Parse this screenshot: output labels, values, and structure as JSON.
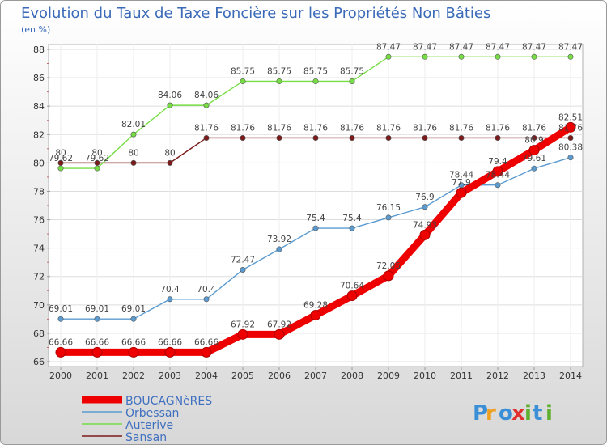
{
  "chart_data": {
    "type": "line",
    "title": "Evolution du Taux de Taxe Foncière sur les Propriétés Non Bâties",
    "subtitle": "(en %)",
    "x": [
      "2000",
      "2001",
      "2002",
      "2003",
      "2004",
      "2005",
      "2006",
      "2007",
      "2008",
      "2009",
      "2010",
      "2011",
      "2012",
      "2013",
      "2014"
    ],
    "ylim": [
      66,
      88
    ],
    "yticks": [
      66,
      68,
      70,
      72,
      74,
      76,
      78,
      80,
      82,
      84,
      86,
      88
    ],
    "grid": true,
    "legend_position": "bottom-left",
    "series": [
      {
        "name": "BOUCAGNèRES",
        "color": "#ee0000",
        "values": [
          66.66,
          66.66,
          66.66,
          66.66,
          66.66,
          67.92,
          67.92,
          69.28,
          70.64,
          72.05,
          74.93,
          77.9,
          79.4,
          80.9,
          82.51
        ],
        "labels": [
          "66.66",
          "66.66",
          "66.66",
          "66.66",
          "66.66",
          "67.92",
          "67.92",
          "69.28",
          "70.64",
          "72.05",
          "74.93",
          "77.9",
          "79.4",
          "80.9",
          "82.51"
        ]
      },
      {
        "name": "Orbessan",
        "color": "#5b9bd0",
        "values": [
          69.01,
          69.01,
          69.01,
          70.4,
          70.4,
          72.47,
          73.92,
          75.4,
          75.4,
          76.15,
          76.9,
          78.44,
          78.44,
          79.61,
          80.38
        ],
        "labels": [
          "69.01",
          "69.01",
          "69.01",
          "70.4",
          "70.4",
          "72.47",
          "73.92",
          "75.4",
          "75.4",
          "76.15",
          "76.9",
          "78.44",
          "78.44",
          "79.61",
          "80.38"
        ]
      },
      {
        "name": "Auterive",
        "color": "#77dd44",
        "values": [
          79.62,
          79.62,
          82.01,
          84.06,
          84.06,
          85.75,
          85.75,
          85.75,
          85.75,
          87.47,
          87.47,
          87.47,
          87.47,
          87.47,
          87.47
        ],
        "labels": [
          "79.62",
          "79.62",
          "82.01",
          "84.06",
          "84.06",
          "85.75",
          "85.75",
          "85.75",
          "85.75",
          "87.47",
          "87.47",
          "87.47",
          "87.47",
          "87.47",
          "87.47"
        ]
      },
      {
        "name": "Sansan",
        "color": "#7a1a1a",
        "values": [
          80,
          80,
          80,
          80,
          81.76,
          81.76,
          81.76,
          81.76,
          81.76,
          81.76,
          81.76,
          81.76,
          81.76,
          81.76,
          81.76
        ],
        "labels": [
          "80",
          "80",
          "80",
          "80",
          "81.76",
          "81.76",
          "81.76",
          "81.76",
          "81.76",
          "81.76",
          "81.76",
          "81.76",
          "81.76",
          "81.76",
          "81.76"
        ]
      }
    ]
  },
  "watermark": {
    "text": "Proxiti",
    "colors": [
      "#3b8fd6",
      "#f0a020",
      "#3b8fd6",
      "#e03030",
      "#60b030",
      "#3b8fd6",
      "#60b030"
    ]
  }
}
